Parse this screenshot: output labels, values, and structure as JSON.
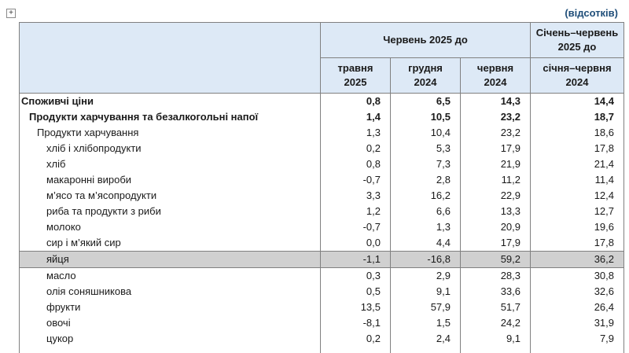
{
  "units_note": "(відсотків)",
  "header": {
    "group_label": "Червень 2025 до",
    "last_col_label": "Січень–червень 2025 до",
    "sub_cols": [
      [
        "травня",
        "2025"
      ],
      [
        "грудня",
        "2024"
      ],
      [
        "червня",
        "2024"
      ],
      [
        "січня–червня",
        "2024"
      ]
    ]
  },
  "rows": [
    {
      "label": "Споживчі ціни",
      "level": 0,
      "bold": true,
      "highlight": false,
      "values": [
        "0,8",
        "6,5",
        "14,3",
        "14,4"
      ]
    },
    {
      "label": "Продукти харчування та безалкогольні напої",
      "level": 1,
      "bold": true,
      "highlight": false,
      "values": [
        "1,4",
        "10,5",
        "23,2",
        "18,7"
      ]
    },
    {
      "label": "Продукти харчування",
      "level": 2,
      "bold": false,
      "highlight": false,
      "values": [
        "1,3",
        "10,4",
        "23,2",
        "18,6"
      ]
    },
    {
      "label": "хліб і хлібопродукти",
      "level": 3,
      "bold": false,
      "highlight": false,
      "values": [
        "0,2",
        "5,3",
        "17,9",
        "17,8"
      ]
    },
    {
      "label": "хліб",
      "level": 3,
      "bold": false,
      "highlight": false,
      "values": [
        "0,8",
        "7,3",
        "21,9",
        "21,4"
      ]
    },
    {
      "label": "макаронні вироби",
      "level": 3,
      "bold": false,
      "highlight": false,
      "values": [
        "-0,7",
        "2,8",
        "11,2",
        "11,4"
      ]
    },
    {
      "label": "м’ясо та м’ясопродукти",
      "level": 3,
      "bold": false,
      "highlight": false,
      "values": [
        "3,3",
        "16,2",
        "22,9",
        "12,4"
      ]
    },
    {
      "label": "риба та продукти з риби",
      "level": 3,
      "bold": false,
      "highlight": false,
      "values": [
        "1,2",
        "6,6",
        "13,3",
        "12,7"
      ]
    },
    {
      "label": "молоко",
      "level": 3,
      "bold": false,
      "highlight": false,
      "values": [
        "-0,7",
        "1,3",
        "20,9",
        "19,6"
      ]
    },
    {
      "label": "сир і м’який сир",
      "level": 3,
      "bold": false,
      "highlight": false,
      "values": [
        "0,0",
        "4,4",
        "17,9",
        "17,8"
      ]
    },
    {
      "label": "яйця",
      "level": 3,
      "bold": false,
      "highlight": true,
      "values": [
        "-1,1",
        "-16,8",
        "59,2",
        "36,2"
      ]
    },
    {
      "label": "масло",
      "level": 3,
      "bold": false,
      "highlight": false,
      "values": [
        "0,3",
        "2,9",
        "28,3",
        "30,8"
      ]
    },
    {
      "label": "олія соняшникова",
      "level": 3,
      "bold": false,
      "highlight": false,
      "values": [
        "0,5",
        "9,1",
        "33,6",
        "32,6"
      ]
    },
    {
      "label": "фрукти",
      "level": 3,
      "bold": false,
      "highlight": false,
      "values": [
        "13,5",
        "57,9",
        "51,7",
        "26,4"
      ]
    },
    {
      "label": "овочі",
      "level": 3,
      "bold": false,
      "highlight": false,
      "values": [
        "-8,1",
        "1,5",
        "24,2",
        "31,9"
      ]
    },
    {
      "label": "цукор",
      "level": 3,
      "bold": false,
      "highlight": false,
      "values": [
        "0,2",
        "2,4",
        "9,1",
        "7,9"
      ]
    }
  ]
}
